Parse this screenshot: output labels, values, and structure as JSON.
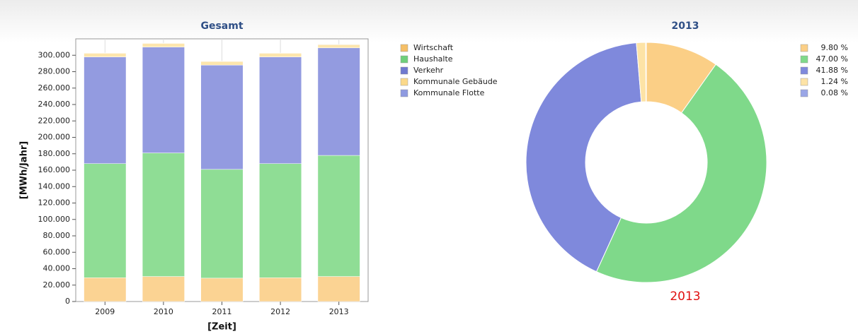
{
  "chart_data": [
    {
      "type": "bar",
      "stacked": true,
      "title": "Gesamt",
      "xlabel": "[Zeit]",
      "ylabel": "[MWh/Jahr]",
      "categories": [
        "2009",
        "2010",
        "2011",
        "2012",
        "2013"
      ],
      "series": [
        {
          "name": "Wirtschaft",
          "color": "#fbd393",
          "legend_color": "#f5bf66",
          "values": [
            29000,
            30500,
            28500,
            29000,
            30500
          ]
        },
        {
          "name": "Haushalte",
          "color": "#8fdd95",
          "legend_color": "#6fcf7a",
          "values": [
            139000,
            150500,
            132500,
            139000,
            147500
          ]
        },
        {
          "name": "Verkehr",
          "color": "#939be0",
          "legend_color": "#6f79cf",
          "values": [
            130000,
            129000,
            127000,
            130000,
            131000
          ]
        },
        {
          "name": "Kommunale Gebäude",
          "color": "#fde6ad",
          "legend_color": "#fbd98a",
          "values": [
            4500,
            4500,
            4500,
            4500,
            4000
          ]
        },
        {
          "name": "Kommunale Flotte",
          "color": "#a3ade8",
          "legend_color": "#8e9ae0",
          "values": [
            300,
            300,
            300,
            300,
            250
          ]
        }
      ],
      "ylim": [
        0,
        320000
      ],
      "yticks": [
        {
          "value": 0,
          "label": "0"
        },
        {
          "value": 20000,
          "label": "20.000"
        },
        {
          "value": 40000,
          "label": "40.000"
        },
        {
          "value": 60000,
          "label": "60.000"
        },
        {
          "value": 80000,
          "label": "80.000"
        },
        {
          "value": 100000,
          "label": "100.000"
        },
        {
          "value": 120000,
          "label": "120.000"
        },
        {
          "value": 140000,
          "label": "140.000"
        },
        {
          "value": 160000,
          "label": "160.000"
        },
        {
          "value": 180000,
          "label": "180.000"
        },
        {
          "value": 200000,
          "label": "200.000"
        },
        {
          "value": 220000,
          "label": "220.000"
        },
        {
          "value": 240000,
          "label": "240.000"
        },
        {
          "value": 260000,
          "label": "260.000"
        },
        {
          "value": 280000,
          "label": "280.000"
        },
        {
          "value": 300000,
          "label": "300.000"
        }
      ],
      "legend": "right"
    },
    {
      "type": "pie",
      "donut": true,
      "title": "2013",
      "subtitle": "2013",
      "values": [
        9.8,
        47.0,
        41.88,
        1.24,
        0.08
      ],
      "value_labels": [
        "9.80 %",
        "47.00 %",
        "41.88 %",
        "1.24 %",
        "0.08 %"
      ],
      "colors": [
        "#fbcf86",
        "#7fd98a",
        "#7f89dc",
        "#fde3a6",
        "#9aa6e6"
      ],
      "legend": "right"
    }
  ]
}
